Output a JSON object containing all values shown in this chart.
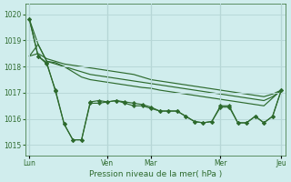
{
  "bg_color": "#d0eded",
  "grid_color": "#b8d8d8",
  "line_color": "#2d6a2d",
  "xlabel": "Pression niveau de la mer( hPa )",
  "ylim": [
    1014.6,
    1020.4
  ],
  "yticks": [
    1015,
    1016,
    1017,
    1018,
    1019,
    1020
  ],
  "xtick_labels": [
    "Lun",
    "Ven",
    "Mar",
    "Mer",
    "Jeu"
  ],
  "xtick_positions": [
    0,
    9,
    14,
    22,
    29
  ],
  "total_points": 30,
  "vline_positions": [
    0,
    9,
    14,
    22,
    29
  ],
  "series": [
    {
      "y": [
        1019.8,
        1018.4,
        1018.1,
        1017.1,
        1015.8,
        1015.2,
        1015.2,
        1016.6,
        1016.6,
        1016.65,
        1016.7,
        1016.6,
        1016.5,
        1016.5,
        1016.4,
        1016.3,
        1016.3,
        1016.3,
        1016.1,
        1015.9,
        1015.85,
        1015.9,
        1016.5,
        1016.5,
        1015.85,
        1015.85,
        1016.1,
        1015.85,
        1016.1,
        1017.1
      ],
      "markers": true
    },
    {
      "y": [
        1018.4,
        1018.85,
        1018.2,
        1018.1,
        1018.0,
        1017.9,
        1017.8,
        1017.7,
        1017.65,
        1017.6,
        1017.55,
        1017.5,
        1017.45,
        1017.4,
        1017.35,
        1017.3,
        1017.25,
        1017.2,
        1017.15,
        1017.1,
        1017.05,
        1017.0,
        1016.95,
        1016.9,
        1016.85,
        1016.8,
        1016.75,
        1016.7,
        1016.85,
        1017.1
      ],
      "markers": false
    },
    {
      "y": [
        1018.4,
        1018.5,
        1018.3,
        1018.2,
        1018.1,
        1018.05,
        1018.0,
        1017.95,
        1017.9,
        1017.85,
        1017.8,
        1017.75,
        1017.7,
        1017.6,
        1017.5,
        1017.45,
        1017.4,
        1017.35,
        1017.3,
        1017.25,
        1017.2,
        1017.15,
        1017.1,
        1017.05,
        1017.0,
        1016.95,
        1016.9,
        1016.85,
        1016.95,
        1017.1
      ],
      "markers": false
    },
    {
      "y": [
        1019.8,
        1018.85,
        1018.2,
        1018.15,
        1018.0,
        1017.8,
        1017.6,
        1017.5,
        1017.45,
        1017.4,
        1017.35,
        1017.3,
        1017.25,
        1017.2,
        1017.17,
        1017.1,
        1017.05,
        1017.0,
        1016.95,
        1016.9,
        1016.85,
        1016.8,
        1016.75,
        1016.7,
        1016.65,
        1016.6,
        1016.55,
        1016.5,
        1016.8,
        1017.1
      ],
      "markers": false
    },
    {
      "y": [
        1019.8,
        1018.4,
        1018.15,
        1017.05,
        1015.8,
        1015.2,
        1015.2,
        1016.65,
        1016.7,
        1016.65,
        1016.7,
        1016.65,
        1016.6,
        1016.55,
        1016.45,
        1016.3,
        1016.3,
        1016.3,
        1016.1,
        1015.9,
        1015.85,
        1015.9,
        1016.45,
        1016.45,
        1015.85,
        1015.85,
        1016.1,
        1015.85,
        1016.1,
        1017.1
      ],
      "markers": true
    }
  ]
}
